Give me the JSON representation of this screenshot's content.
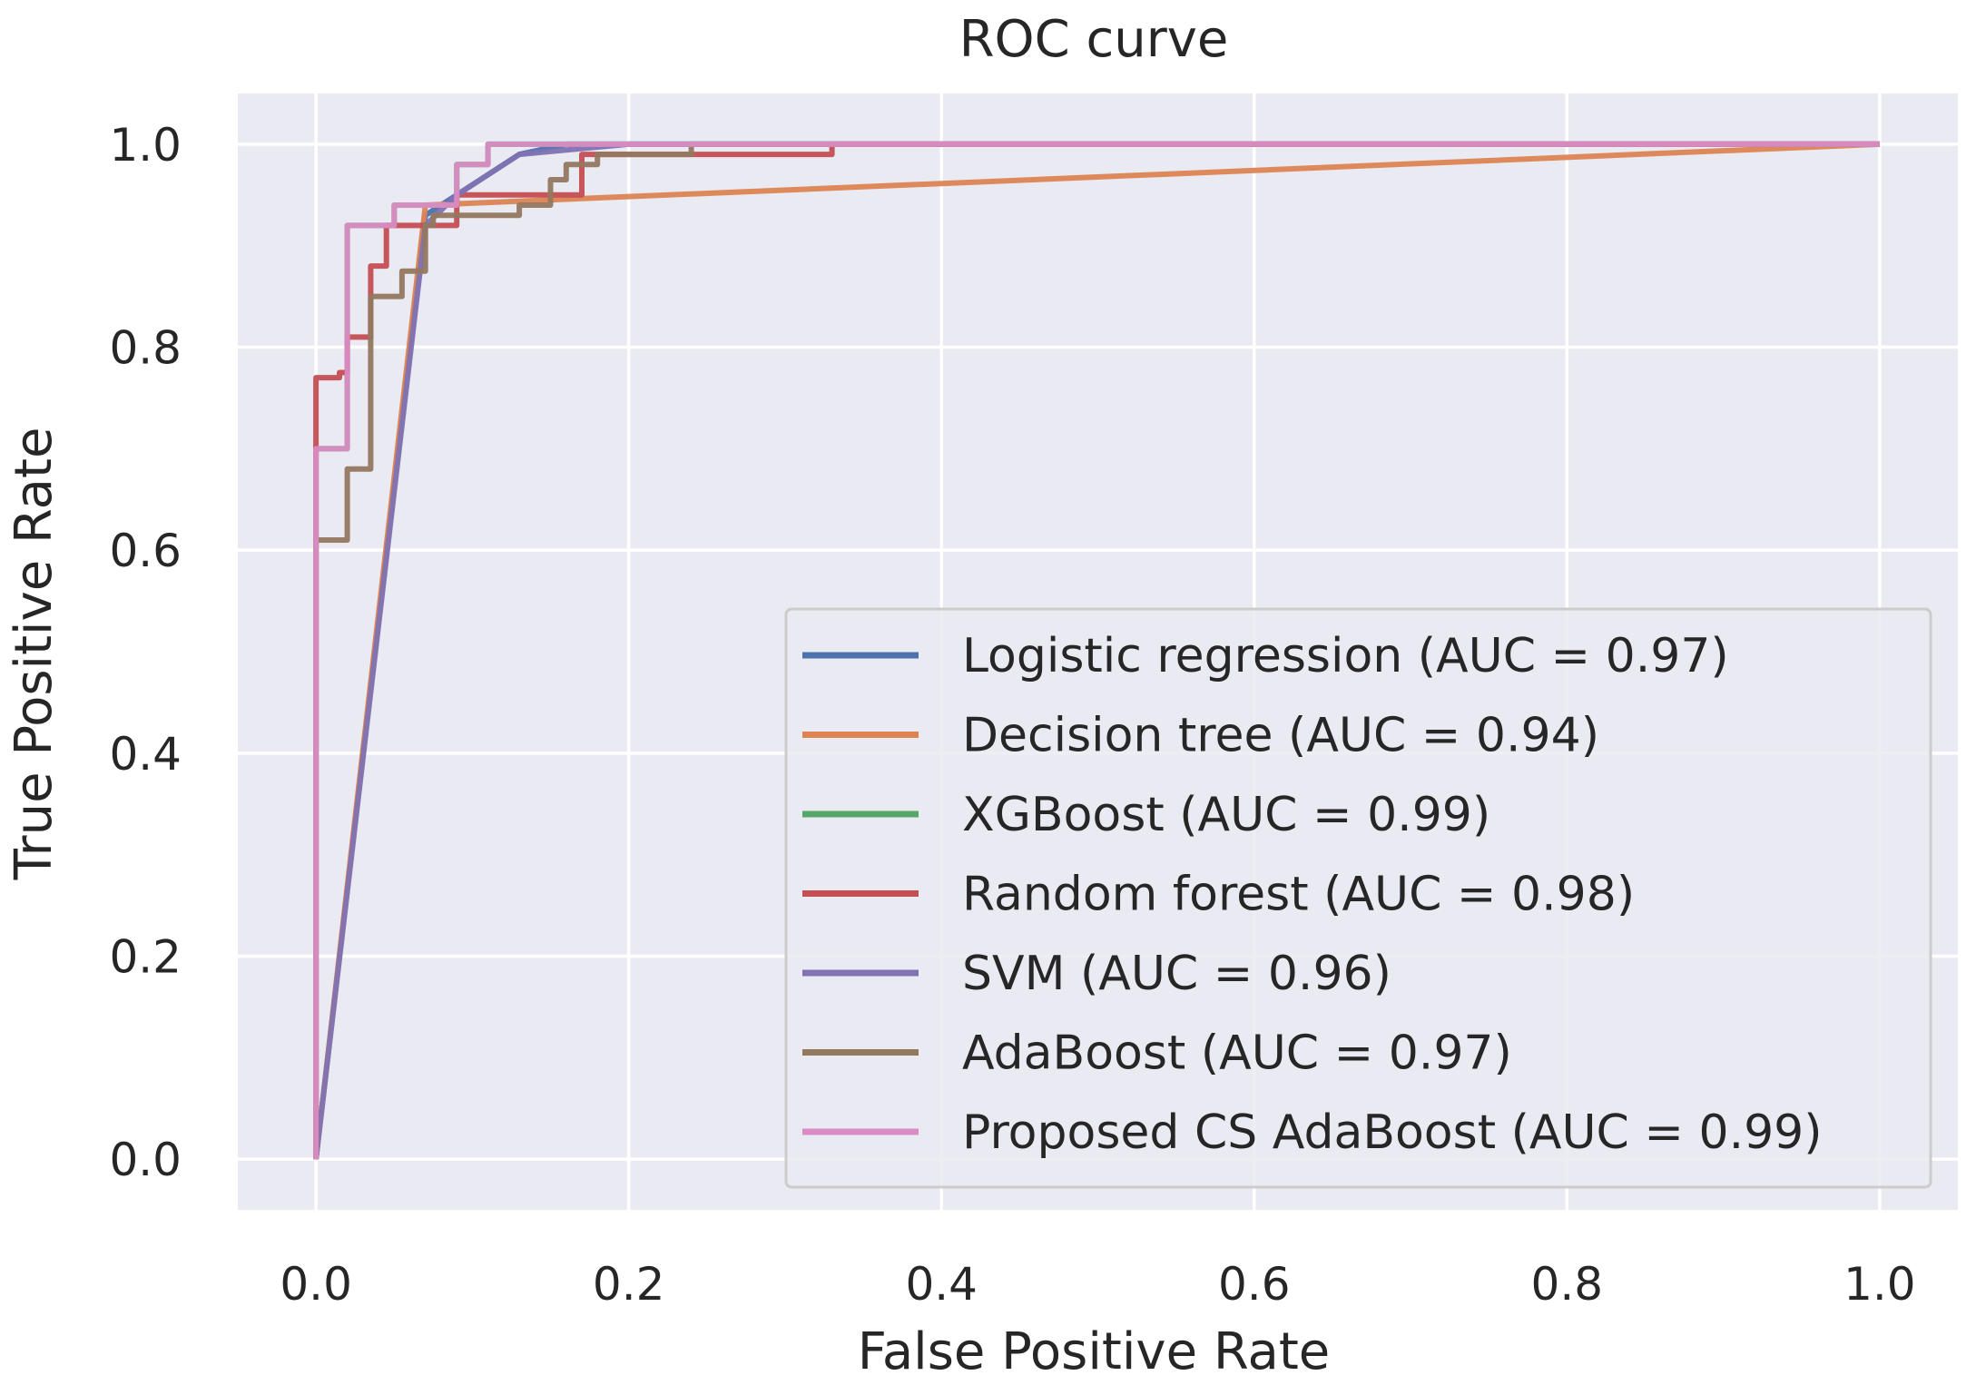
{
  "chart_data": {
    "type": "line",
    "title": "ROC curve",
    "xlabel": "False Positive Rate",
    "ylabel": "True Positive Rate",
    "xlim": [
      -0.05,
      1.05
    ],
    "ylim": [
      -0.05,
      1.05
    ],
    "xticks": [
      0.0,
      0.2,
      0.4,
      0.6,
      0.8,
      1.0
    ],
    "xtick_labels": [
      "0.0",
      "0.2",
      "0.4",
      "0.6",
      "0.8",
      "1.0"
    ],
    "yticks": [
      0.0,
      0.2,
      0.4,
      0.6,
      0.8,
      1.0
    ],
    "ytick_labels": [
      "0.0",
      "0.2",
      "0.4",
      "0.6",
      "0.8",
      "1.0"
    ],
    "grid": true,
    "legend_position": "lower-right",
    "series": [
      {
        "name": "Logistic regression (AUC = 0.97)",
        "color": "#4c72b0",
        "x": [
          0.0,
          0.07,
          0.13,
          0.16,
          1.0
        ],
        "y": [
          0.0,
          0.93,
          0.99,
          1.0,
          1.0
        ]
      },
      {
        "name": "Decision tree (AUC = 0.94)",
        "color": "#dd8452",
        "x": [
          0.0,
          0.07,
          1.0
        ],
        "y": [
          0.0,
          0.94,
          1.0
        ]
      },
      {
        "name": "XGBoost (AUC = 0.99)",
        "color": "#55a868",
        "x": [
          0.0,
          0.0,
          0.02,
          0.02,
          0.05,
          0.05,
          0.09,
          0.09,
          0.11,
          0.11,
          1.0
        ],
        "y": [
          0.0,
          0.7,
          0.7,
          0.92,
          0.92,
          0.94,
          0.94,
          0.98,
          0.98,
          1.0,
          1.0
        ]
      },
      {
        "name": "Random forest (AUC = 0.98)",
        "color": "#c44e52",
        "x": [
          0.0,
          0.0,
          0.015,
          0.015,
          0.02,
          0.02,
          0.035,
          0.035,
          0.045,
          0.045,
          0.09,
          0.09,
          0.17,
          0.17,
          0.33,
          0.33,
          1.0
        ],
        "y": [
          0.0,
          0.77,
          0.77,
          0.775,
          0.775,
          0.81,
          0.81,
          0.88,
          0.88,
          0.92,
          0.92,
          0.95,
          0.95,
          0.99,
          0.99,
          1.0,
          1.0
        ]
      },
      {
        "name": "SVM (AUC = 0.96)",
        "color": "#8172b3",
        "x": [
          0.0,
          0.07,
          0.09,
          0.13,
          0.2,
          1.0
        ],
        "y": [
          0.0,
          0.92,
          0.95,
          0.99,
          1.0,
          1.0
        ]
      },
      {
        "name": "AdaBoost (AUC = 0.97)",
        "color": "#937860",
        "x": [
          0.0,
          0.0,
          0.02,
          0.02,
          0.035,
          0.035,
          0.055,
          0.055,
          0.07,
          0.07,
          0.075,
          0.075,
          0.13,
          0.13,
          0.15,
          0.15,
          0.16,
          0.16,
          0.18,
          0.18,
          0.24,
          0.24,
          1.0
        ],
        "y": [
          0.0,
          0.61,
          0.61,
          0.68,
          0.68,
          0.85,
          0.85,
          0.875,
          0.875,
          0.92,
          0.92,
          0.93,
          0.93,
          0.94,
          0.94,
          0.965,
          0.965,
          0.98,
          0.98,
          0.99,
          0.99,
          1.0,
          1.0
        ]
      },
      {
        "name": "Proposed CS AdaBoost (AUC = 0.99)",
        "color": "#da8bc3",
        "x": [
          0.0,
          0.0,
          0.02,
          0.02,
          0.05,
          0.05,
          0.09,
          0.09,
          0.11,
          0.11,
          1.0
        ],
        "y": [
          0.0,
          0.7,
          0.7,
          0.92,
          0.92,
          0.94,
          0.94,
          0.98,
          0.98,
          1.0,
          1.0
        ]
      }
    ]
  }
}
